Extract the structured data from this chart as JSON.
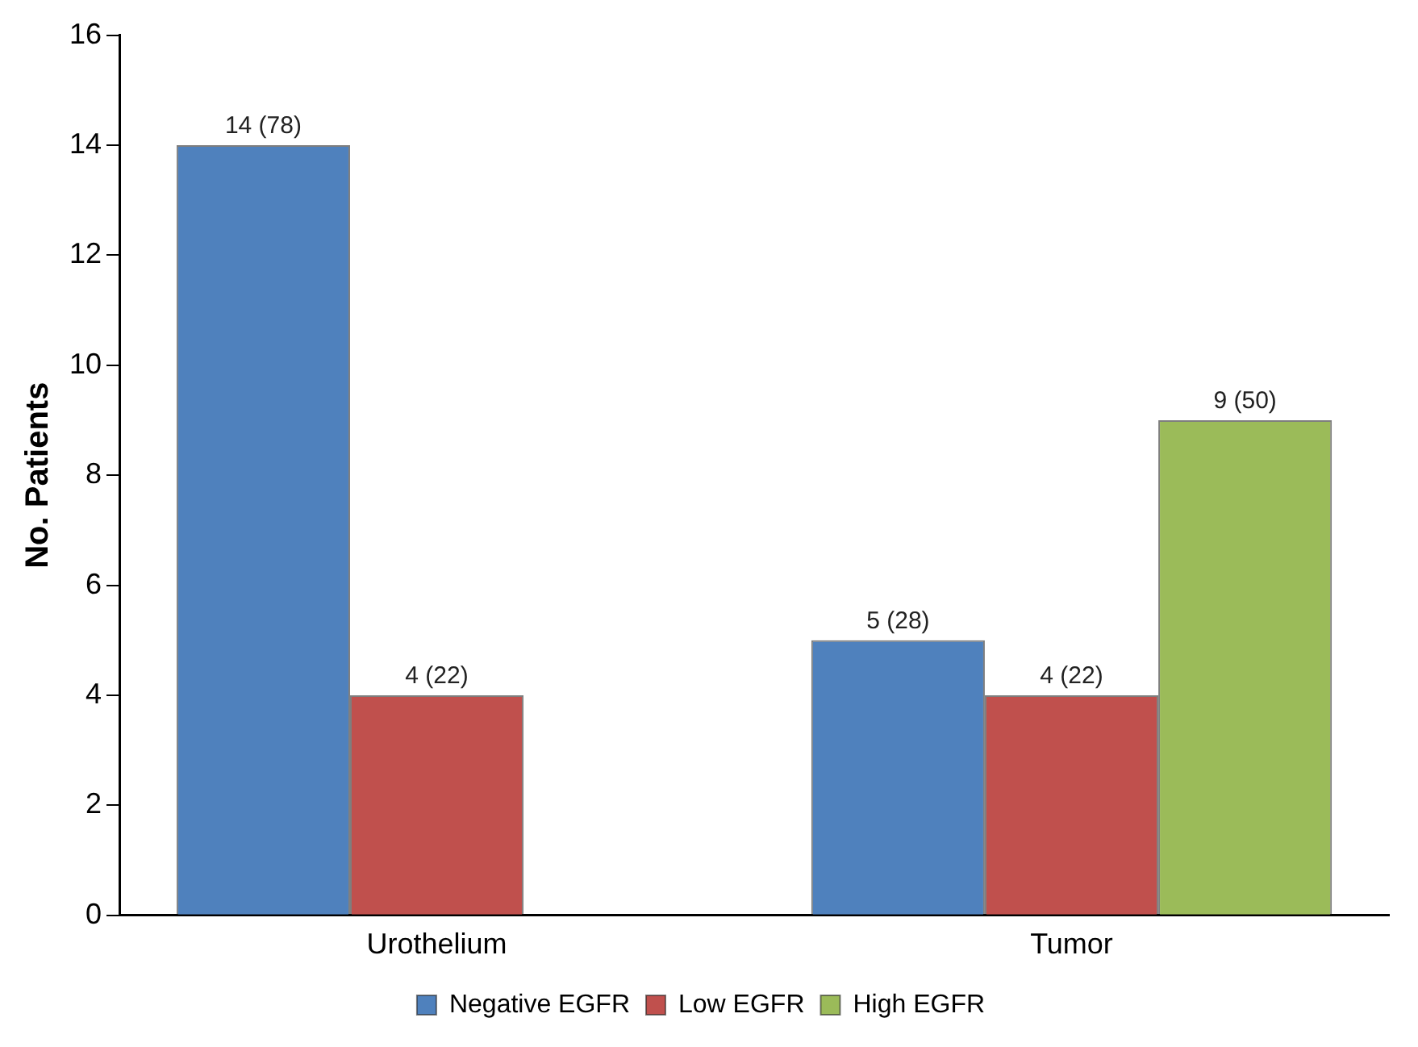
{
  "chart_data": {
    "type": "bar",
    "ylabel": "No. Patients",
    "categories": [
      "Urothelium",
      "Tumor"
    ],
    "series": [
      {
        "name": "Negative EGFR",
        "color": "#4f81bd",
        "values": [
          14,
          5
        ],
        "value_labels": [
          "14 (78)",
          "5 (28)"
        ]
      },
      {
        "name": "Low EGFR",
        "color": "#c0504d",
        "values": [
          4,
          4
        ],
        "value_labels": [
          "4 (22)",
          "4 (22)"
        ]
      },
      {
        "name": "High EGFR",
        "color": "#9bbb59",
        "values": [
          null,
          9
        ],
        "value_labels": [
          null,
          "9 (50)"
        ]
      }
    ],
    "ylim": [
      0,
      16
    ],
    "yticks": [
      0,
      2,
      4,
      6,
      8,
      10,
      12,
      14,
      16
    ],
    "grid": false,
    "legend": "bottom"
  }
}
